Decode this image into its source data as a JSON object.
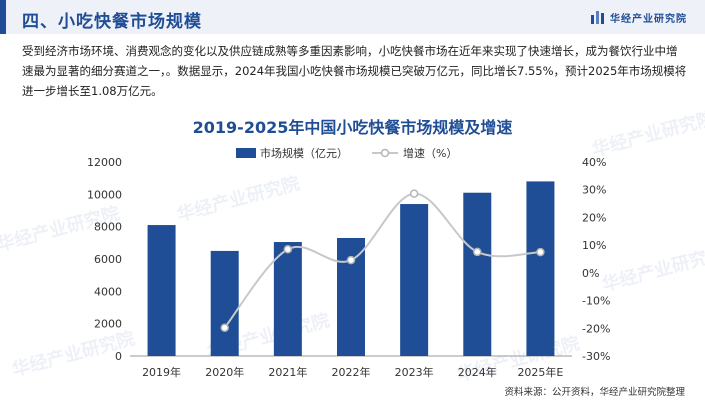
{
  "header": {
    "section_title": "四、小吃快餐市场规模",
    "brand": "华经产业研究院"
  },
  "intro_text": "受到经济市场环境、消费观念的变化以及供应链成熟等多重因素影响，小吃快餐市场在近年来实现了快速增长，成为餐饮行业中增速最为显著的细分赛道之一，。数据显示，2024年我国小吃快餐市场规模已突破万亿元，同比增长7.55%，预计2025年市场规模将进一步增长至1.08万亿元。",
  "watermark_text": "华经产业研究院",
  "source_text": "资料来源：公开资料，华经产业研究院整理",
  "colors": {
    "bar": "#1f4e96",
    "line": "#c8c8c8",
    "accent": "#1f4e96"
  },
  "chart_data": {
    "type": "bar+line",
    "title": "2019-2025年中国小吃快餐市场规模及增速",
    "categories": [
      "2019年",
      "2020年",
      "2021年",
      "2022年",
      "2023年",
      "2024年",
      "2025年E"
    ],
    "series": [
      {
        "name": "市场规模（亿元）",
        "type": "bar",
        "axis": "left",
        "values": [
          8100,
          6500,
          7050,
          7300,
          9400,
          10100,
          10800
        ]
      },
      {
        "name": "增速（%）",
        "type": "line",
        "axis": "right",
        "values": [
          null,
          -19.8,
          8.5,
          4.6,
          28.6,
          7.55,
          7.5
        ]
      }
    ],
    "left_axis": {
      "min": 0,
      "max": 12000,
      "ticks": [
        "0",
        "2000",
        "4000",
        "6000",
        "8000",
        "10000",
        "12000"
      ]
    },
    "right_axis": {
      "min": -30,
      "max": 40,
      "ticks": [
        "-30%",
        "-20%",
        "-10%",
        "0%",
        "10%",
        "20%",
        "30%",
        "40%"
      ]
    },
    "legend_position": "top-center",
    "grid": false
  }
}
